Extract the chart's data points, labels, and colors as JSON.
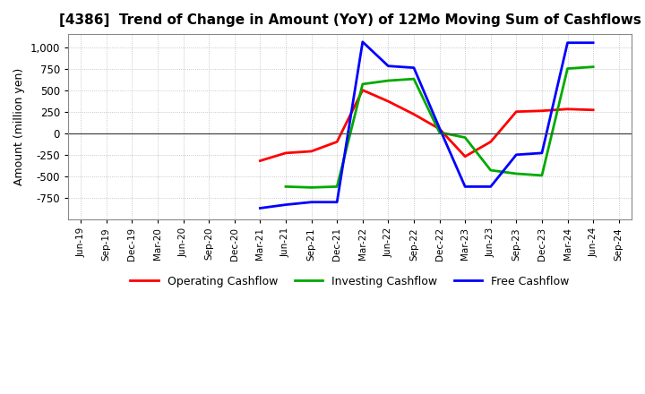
{
  "title": "[4386]  Trend of Change in Amount (YoY) of 12Mo Moving Sum of Cashflows",
  "ylabel": "Amount (million yen)",
  "xlabels": [
    "Jun-19",
    "Sep-19",
    "Dec-19",
    "Mar-20",
    "Jun-20",
    "Sep-20",
    "Dec-20",
    "Mar-21",
    "Jun-21",
    "Sep-21",
    "Dec-21",
    "Mar-22",
    "Jun-22",
    "Sep-22",
    "Dec-22",
    "Mar-23",
    "Jun-23",
    "Sep-23",
    "Dec-23",
    "Mar-24",
    "Jun-24",
    "Sep-24"
  ],
  "operating": [
    null,
    null,
    null,
    null,
    null,
    null,
    null,
    -320,
    -230,
    -210,
    -100,
    500,
    370,
    220,
    50,
    -270,
    -100,
    250,
    260,
    280,
    270,
    null
  ],
  "investing": [
    null,
    null,
    null,
    null,
    null,
    null,
    null,
    null,
    -620,
    -630,
    -620,
    570,
    610,
    630,
    10,
    -50,
    -430,
    -470,
    -490,
    750,
    770,
    null
  ],
  "free": [
    null,
    null,
    null,
    null,
    null,
    null,
    null,
    -870,
    -830,
    -800,
    -800,
    1060,
    780,
    760,
    60,
    -620,
    -620,
    -250,
    -230,
    1050,
    1050,
    null
  ],
  "ylim": [
    -1000,
    1150
  ],
  "yticks": [
    -750,
    -500,
    -250,
    0,
    250,
    500,
    750,
    1000
  ],
  "colors": {
    "operating": "#ff0000",
    "investing": "#00aa00",
    "free": "#0000ff"
  },
  "legend_labels": [
    "Operating Cashflow",
    "Investing Cashflow",
    "Free Cashflow"
  ],
  "background": "#ffffff",
  "grid_color": "#b0b0b0"
}
